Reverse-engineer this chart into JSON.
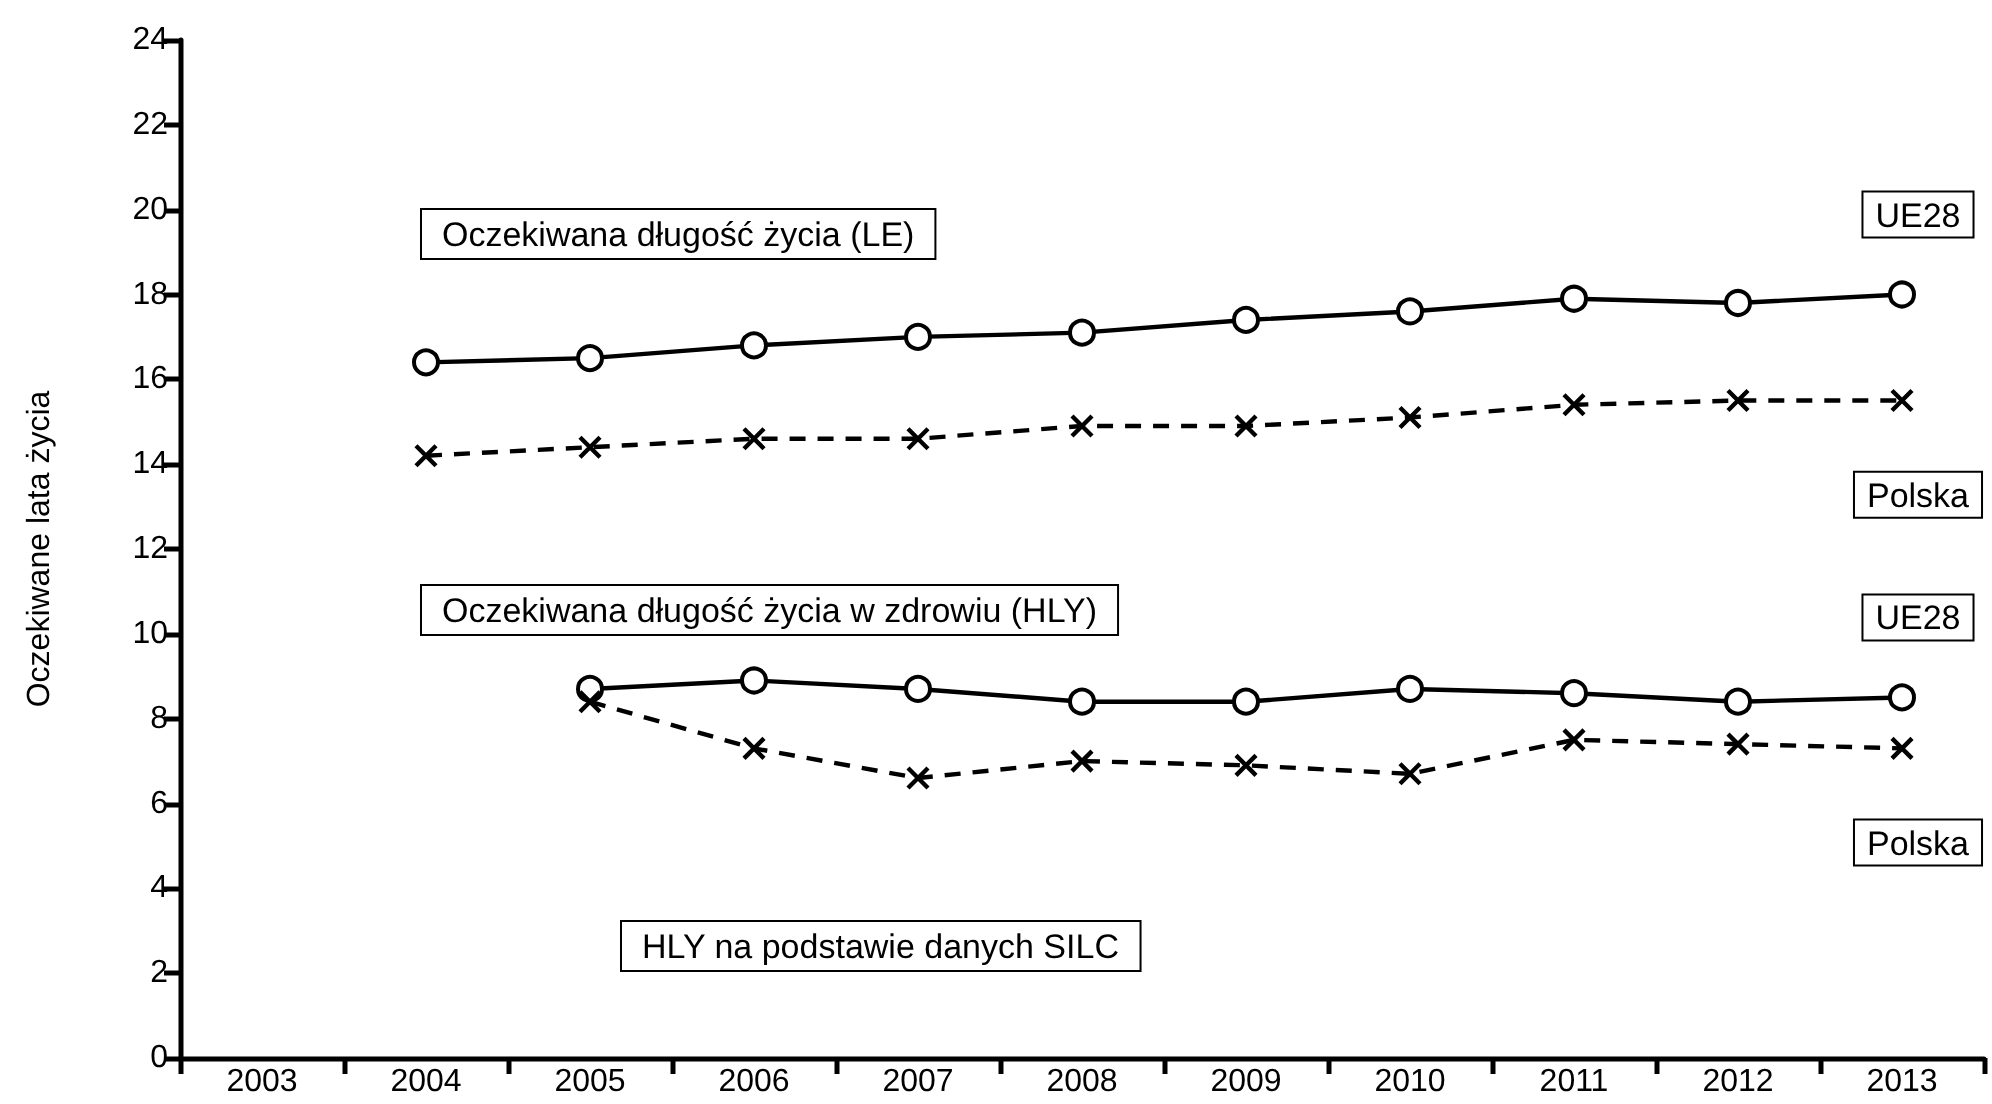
{
  "chart_data": {
    "type": "line",
    "ylabel": "Oczekiwane lata życia",
    "categories": [
      "2003",
      "2004",
      "2005",
      "2006",
      "2007",
      "2008",
      "2009",
      "2010",
      "2011",
      "2012",
      "2013"
    ],
    "ylim": [
      0,
      24
    ],
    "yticks": [
      0,
      2,
      4,
      6,
      8,
      10,
      12,
      14,
      16,
      18,
      20,
      22,
      24
    ],
    "annotations": [
      "Oczekiwana długość życia (LE)",
      "Oczekiwana długość życia w zdrowiu (HLY)",
      "HLY na podstawie danych SILC"
    ],
    "series": [
      {
        "name": "UE28",
        "color": "#000000",
        "marker": "circle",
        "line_style": "solid",
        "values": [
          null,
          16.4,
          16.5,
          16.8,
          17.0,
          17.1,
          17.4,
          17.6,
          17.9,
          17.8,
          18.0
        ]
      },
      {
        "name": "Polska",
        "color": "#000000",
        "marker": "cross",
        "line_style": "dashed",
        "values": [
          null,
          14.2,
          14.4,
          14.6,
          14.6,
          14.9,
          14.9,
          15.1,
          15.4,
          15.5,
          15.5
        ]
      },
      {
        "name": "UE28",
        "color": "#000000",
        "marker": "circle",
        "line_style": "solid",
        "values": [
          null,
          null,
          8.7,
          8.9,
          8.7,
          8.4,
          8.4,
          8.7,
          8.6,
          8.4,
          8.5
        ]
      },
      {
        "name": "Polska",
        "color": "#000000",
        "marker": "cross",
        "line_style": "dashed",
        "values": [
          null,
          null,
          8.4,
          7.3,
          6.6,
          7.0,
          6.9,
          6.7,
          7.5,
          7.4,
          7.3
        ]
      }
    ]
  }
}
